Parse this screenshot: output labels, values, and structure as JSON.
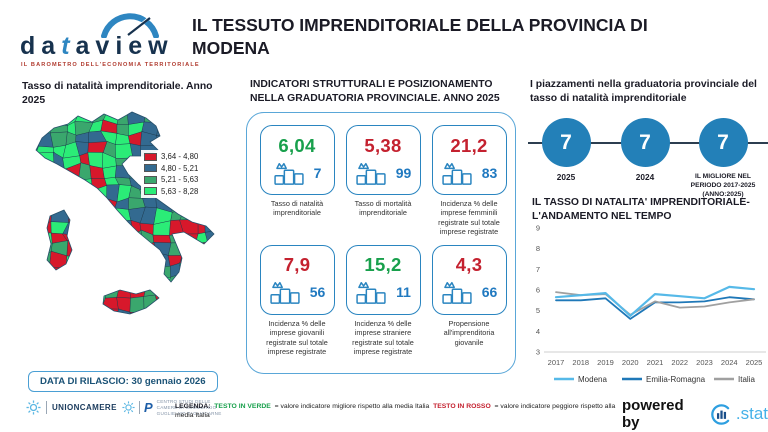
{
  "header": {
    "logo_text_left": "da",
    "logo_text_t": "t",
    "logo_text_right": "aview",
    "logo_tagline": "IL BAROMETRO DELL'ECONOMIA TERRITORIALE",
    "title": "IL TESSUTO IMPRENDITORIALE DELLA PROVINCIA DI MODENA"
  },
  "map_panel": {
    "title": "Tasso di natalità imprenditoriale. Anno 2025",
    "legend": [
      {
        "label": "3,64 - 4,80",
        "color": "#d7182b"
      },
      {
        "label": "4,80 - 5,21",
        "color": "#336a90"
      },
      {
        "label": "5,21 - 5,63",
        "color": "#3aa76d"
      },
      {
        "label": "5,63 - 8,28",
        "color": "#2bec77"
      }
    ],
    "release_badge": "DATA DI RILASCIO: 30 gennaio 2026"
  },
  "indicators_panel": {
    "title": "INDICATORI STRUTTURALI E POSIZIONAMENTO NELLA GRADUATORIA PROVINCIALE. ANNO 2025",
    "cards": [
      {
        "value": "6,04",
        "value_color": "#18a04c",
        "rank": "7",
        "label": "Tasso di natalità imprenditoriale"
      },
      {
        "value": "5,38",
        "value_color": "#c4212f",
        "rank": "99",
        "label": "Tasso di mortalità imprenditoriale"
      },
      {
        "value": "21,2",
        "value_color": "#c4212f",
        "rank": "83",
        "label": "Incidenza % delle imprese femminili registrate sul totale imprese registrate"
      },
      {
        "value": "7,9",
        "value_color": "#c4212f",
        "rank": "56",
        "label": "Incidenza % delle imprese giovanili registrate sul totale imprese registrate"
      },
      {
        "value": "15,2",
        "value_color": "#18a04c",
        "rank": "11",
        "label": "Incidenza % delle imprese straniere registrate sul totale imprese registrate"
      },
      {
        "value": "4,3",
        "value_color": "#c4212f",
        "rank": "66",
        "label": "Propensione all'imprenditoria giovanile"
      }
    ]
  },
  "ranking_panel": {
    "title": "I piazzamenti nella graduatoria provinciale del tasso di natalità imprenditoriale",
    "milestones": [
      {
        "value": "7",
        "label": "2025"
      },
      {
        "value": "7",
        "label": "2024"
      },
      {
        "value": "7",
        "label": "IL MIGLIORE NEL PERIODO 2017-2025 (ANNO:2025)"
      }
    ]
  },
  "chart_data": {
    "type": "line",
    "title": "IL TASSO DI NATALITA' IMPRENDITORIALE- L'ANDAMENTO NEL TEMPO",
    "x": [
      2017,
      2018,
      2019,
      2020,
      2021,
      2022,
      2023,
      2024,
      2025
    ],
    "series": [
      {
        "name": "Modena",
        "color": "#56b9e8",
        "values": [
          5.65,
          5.75,
          5.85,
          4.75,
          5.8,
          5.7,
          5.6,
          6.15,
          6.04
        ]
      },
      {
        "name": "Emilia-Romagna",
        "color": "#1f78b8",
        "values": [
          5.5,
          5.5,
          5.6,
          4.6,
          5.4,
          5.4,
          5.45,
          5.65,
          5.55
        ]
      },
      {
        "name": "Italia",
        "color": "#a0a0a0",
        "values": [
          5.9,
          5.75,
          5.8,
          4.8,
          5.45,
          5.15,
          5.2,
          5.4,
          5.55
        ]
      }
    ],
    "ylim": [
      3,
      9
    ],
    "yticks": [
      3,
      4,
      5,
      6,
      7,
      8,
      9
    ],
    "grid": false,
    "legend_position": "bottom"
  },
  "footer": {
    "unioncamere_label": "UNIONCAMERE",
    "tagliacarne_lines": [
      "CENTRO STUDI DELLE",
      "CAMERE DI COMMERCIO",
      "GUGLIELMO TAGLIACARNE"
    ],
    "legend": {
      "title": "LEGENDA:",
      "green_label": "TESTO IN VERDE",
      "green_text": "= valore indicatore migliore rispetto alla media Italia",
      "red_label": "TESTO IN ROSSO",
      "red_text": "= valore indicatore peggiore rispetto alla media Italia"
    },
    "powered_by": "powered by",
    "stat_label": ".stat"
  }
}
